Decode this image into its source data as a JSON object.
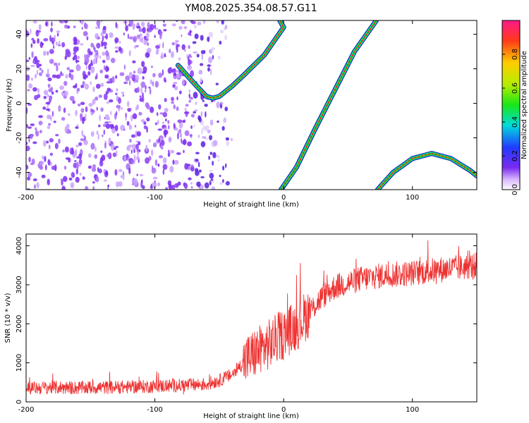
{
  "title": "YM08.2025.354.08.57.G11",
  "colors": {
    "snr_line": "#ee3333",
    "track_core": "#ee2222",
    "track_mid": "#22dd22",
    "track_edge": "#1010aa",
    "noise": "#7a2af0"
  },
  "chart_data": [
    {
      "type": "heatmap",
      "xlabel": "Height of straight line (km)",
      "ylabel": "Frequency (Hz)",
      "xlim": [
        -200,
        150
      ],
      "ylim": [
        -50,
        48
      ],
      "xticks": [
        "-200",
        "-100",
        "0",
        "100"
      ],
      "yticks": [
        "-40",
        "-20",
        "0",
        "20",
        "40"
      ],
      "colorbar": {
        "label": "Normalized spectral amplitude",
        "range": [
          0,
          1
        ],
        "ticks": [
          "0.0",
          "0.2",
          "0.4",
          "0.6",
          "0.8"
        ]
      },
      "tracks": [
        {
          "name": "",
          "points": [
            [
              -82,
              22
            ],
            [
              -70,
              12
            ],
            [
              -60,
              4
            ],
            [
              -55,
              3
            ],
            [
              -50,
              4
            ],
            [
              -40,
              10
            ],
            [
              -30,
              17
            ],
            [
              -15,
              28
            ],
            [
              0,
              44
            ],
            [
              -3,
              48
            ]
          ]
        },
        {
          "name": "",
          "points": [
            [
              -2,
              -50
            ],
            [
              10,
              -37
            ],
            [
              25,
              -14
            ],
            [
              40,
              8
            ],
            [
              55,
              30
            ],
            [
              72,
              48
            ]
          ]
        },
        {
          "name": "",
          "points": [
            [
              73,
              -50
            ],
            [
              85,
              -40
            ],
            [
              100,
              -32
            ],
            [
              115,
              -29
            ],
            [
              130,
              -32
            ],
            [
              145,
              -39
            ],
            [
              150,
              -42
            ]
          ]
        }
      ]
    },
    {
      "type": "line",
      "xlabel": "Height of straight line (km)",
      "ylabel": "SNR (10 * v/v)",
      "xlim": [
        -200,
        150
      ],
      "ylim": [
        0,
        4300
      ],
      "xticks": [
        "-200",
        "-100",
        "0",
        "100"
      ],
      "yticks": [
        "0",
        "1000",
        "2000",
        "3000",
        "4000"
      ],
      "series": [
        {
          "name": "",
          "x": [
            -200,
            -180,
            -160,
            -140,
            -120,
            -100,
            -80,
            -60,
            -50,
            -40,
            -30,
            -20,
            -10,
            0,
            10,
            20,
            30,
            40,
            60,
            80,
            100,
            120,
            140,
            150
          ],
          "y": [
            350,
            370,
            360,
            370,
            380,
            400,
            420,
            450,
            550,
            700,
            1050,
            1300,
            1500,
            1750,
            1950,
            2300,
            2700,
            2950,
            3150,
            3250,
            3300,
            3380,
            3450,
            3500
          ]
        }
      ]
    }
  ]
}
